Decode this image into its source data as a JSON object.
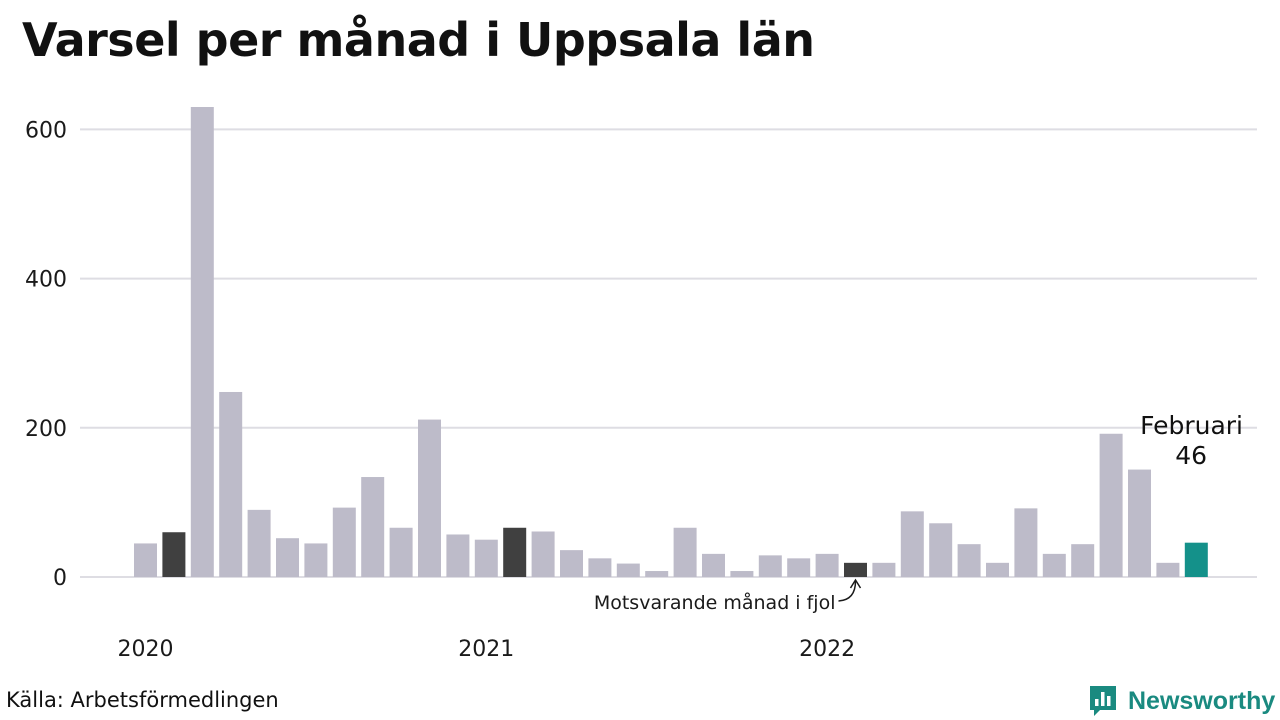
{
  "title": "Varsel per månad i Uppsala län",
  "source": "Källa: Arbetsförmedlingen",
  "brand": {
    "name": "Newsworthy",
    "icon": "bar-chart-speech-bubble-icon",
    "color": "#1a8a80"
  },
  "colors": {
    "default": "#bdbbc9",
    "comparison": "#404040",
    "highlight": "#14918a",
    "grid": "#dedde3"
  },
  "chart_data": {
    "type": "bar",
    "title": "Varsel per månad i Uppsala län",
    "xlabel": "",
    "ylabel": "",
    "ylim": [
      0,
      630
    ],
    "yticks": [
      0,
      200,
      400,
      600
    ],
    "grid": true,
    "year_labels": [
      {
        "label": "2020",
        "month_index": 0
      },
      {
        "label": "2021",
        "month_index": 12
      },
      {
        "label": "2022",
        "month_index": 24
      }
    ],
    "categories": [
      "2020-01",
      "2020-02",
      "2020-03",
      "2020-04",
      "2020-05",
      "2020-06",
      "2020-07",
      "2020-08",
      "2020-09",
      "2020-10",
      "2020-11",
      "2020-12",
      "2021-01",
      "2021-02",
      "2021-03",
      "2021-04",
      "2021-05",
      "2021-06",
      "2021-07",
      "2021-08",
      "2021-09",
      "2021-10",
      "2021-11",
      "2021-12",
      "2022-01",
      "2022-02",
      "2022-03",
      "2022-04",
      "2022-05",
      "2022-06",
      "2022-07",
      "2022-08",
      "2022-09",
      "2022-10",
      "2022-11",
      "2022-12",
      "2023-01",
      "2023-02"
    ],
    "values": [
      45,
      60,
      630,
      248,
      90,
      52,
      45,
      93,
      134,
      66,
      211,
      57,
      50,
      66,
      61,
      36,
      25,
      18,
      8,
      66,
      31,
      8,
      29,
      25,
      31,
      19,
      19,
      88,
      72,
      44,
      19,
      92,
      31,
      44,
      192,
      144,
      19,
      46
    ],
    "comparison_indices": [
      1,
      13,
      25
    ],
    "highlight_index": 37,
    "annotation": {
      "text": "Motsvarande månad i fjol",
      "target_index": 25
    },
    "callout": {
      "month": "Februari",
      "value": "46",
      "target_index": 37
    }
  }
}
